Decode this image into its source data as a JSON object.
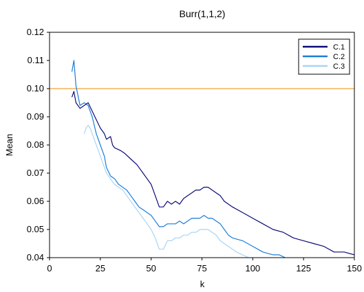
{
  "chart_data": {
    "type": "line",
    "title": "Burr(1,1,2)",
    "xlabel": "k",
    "ylabel": "Mean",
    "xlim": [
      0,
      150
    ],
    "ylim": [
      0.04,
      0.12
    ],
    "xticks": [
      0,
      25,
      50,
      75,
      100,
      125,
      150
    ],
    "yticks": [
      0.04,
      0.05,
      0.06,
      0.07,
      0.08,
      0.09,
      0.1,
      0.11,
      0.12
    ],
    "ytick_labels": [
      "0.04",
      "0.05",
      "0.06",
      "0.07",
      "0.08",
      "0.09",
      "0.10",
      "0.11",
      "0.12"
    ],
    "grid": false,
    "legend_position": "top-right",
    "reference_line": {
      "y": 0.1,
      "color": "#f5a030"
    },
    "series": [
      {
        "name": "C.1",
        "color": "#0a0a78",
        "points": [
          [
            11,
            0.097
          ],
          [
            12,
            0.099
          ],
          [
            13,
            0.095
          ],
          [
            15,
            0.093
          ],
          [
            17,
            0.094
          ],
          [
            19,
            0.095
          ],
          [
            21,
            0.092
          ],
          [
            23,
            0.089
          ],
          [
            25,
            0.086
          ],
          [
            27,
            0.084
          ],
          [
            28,
            0.082
          ],
          [
            30,
            0.083
          ],
          [
            31,
            0.08
          ],
          [
            32,
            0.079
          ],
          [
            35,
            0.078
          ],
          [
            37,
            0.077
          ],
          [
            40,
            0.075
          ],
          [
            43,
            0.073
          ],
          [
            46,
            0.07
          ],
          [
            48,
            0.068
          ],
          [
            50,
            0.066
          ],
          [
            52,
            0.062
          ],
          [
            54,
            0.058
          ],
          [
            56,
            0.058
          ],
          [
            58,
            0.06
          ],
          [
            60,
            0.059
          ],
          [
            62,
            0.06
          ],
          [
            64,
            0.059
          ],
          [
            66,
            0.061
          ],
          [
            68,
            0.062
          ],
          [
            70,
            0.063
          ],
          [
            72,
            0.064
          ],
          [
            74,
            0.064
          ],
          [
            76,
            0.065
          ],
          [
            78,
            0.065
          ],
          [
            80,
            0.064
          ],
          [
            82,
            0.063
          ],
          [
            84,
            0.062
          ],
          [
            86,
            0.06
          ],
          [
            88,
            0.059
          ],
          [
            90,
            0.058
          ],
          [
            95,
            0.056
          ],
          [
            100,
            0.054
          ],
          [
            105,
            0.052
          ],
          [
            110,
            0.05
          ],
          [
            115,
            0.049
          ],
          [
            120,
            0.047
          ],
          [
            125,
            0.046
          ],
          [
            130,
            0.045
          ],
          [
            135,
            0.044
          ],
          [
            140,
            0.042
          ],
          [
            145,
            0.042
          ],
          [
            150,
            0.041
          ]
        ]
      },
      {
        "name": "C.2",
        "color": "#1a7cd8",
        "points": [
          [
            11,
            0.106
          ],
          [
            12,
            0.11
          ],
          [
            13,
            0.101
          ],
          [
            15,
            0.094
          ],
          [
            17,
            0.095
          ],
          [
            19,
            0.094
          ],
          [
            21,
            0.09
          ],
          [
            23,
            0.084
          ],
          [
            25,
            0.08
          ],
          [
            27,
            0.076
          ],
          [
            28,
            0.072
          ],
          [
            30,
            0.069
          ],
          [
            32,
            0.068
          ],
          [
            34,
            0.066
          ],
          [
            36,
            0.065
          ],
          [
            38,
            0.064
          ],
          [
            40,
            0.062
          ],
          [
            42,
            0.06
          ],
          [
            44,
            0.058
          ],
          [
            46,
            0.057
          ],
          [
            48,
            0.056
          ],
          [
            50,
            0.055
          ],
          [
            52,
            0.053
          ],
          [
            54,
            0.051
          ],
          [
            56,
            0.051
          ],
          [
            58,
            0.052
          ],
          [
            60,
            0.052
          ],
          [
            62,
            0.052
          ],
          [
            64,
            0.053
          ],
          [
            66,
            0.052
          ],
          [
            68,
            0.053
          ],
          [
            70,
            0.054
          ],
          [
            72,
            0.054
          ],
          [
            74,
            0.054
          ],
          [
            76,
            0.055
          ],
          [
            78,
            0.054
          ],
          [
            80,
            0.054
          ],
          [
            82,
            0.053
          ],
          [
            84,
            0.052
          ],
          [
            86,
            0.05
          ],
          [
            88,
            0.048
          ],
          [
            90,
            0.047
          ],
          [
            95,
            0.046
          ],
          [
            100,
            0.044
          ],
          [
            105,
            0.042
          ],
          [
            110,
            0.041
          ],
          [
            113,
            0.041
          ],
          [
            116,
            0.04
          ]
        ]
      },
      {
        "name": "C.3",
        "color": "#a8d4f5",
        "points": [
          [
            17,
            0.084
          ],
          [
            18,
            0.086
          ],
          [
            19,
            0.087
          ],
          [
            20,
            0.086
          ],
          [
            22,
            0.082
          ],
          [
            24,
            0.078
          ],
          [
            26,
            0.074
          ],
          [
            28,
            0.07
          ],
          [
            30,
            0.068
          ],
          [
            32,
            0.066
          ],
          [
            34,
            0.065
          ],
          [
            36,
            0.064
          ],
          [
            38,
            0.062
          ],
          [
            40,
            0.06
          ],
          [
            42,
            0.058
          ],
          [
            44,
            0.056
          ],
          [
            46,
            0.054
          ],
          [
            48,
            0.052
          ],
          [
            50,
            0.05
          ],
          [
            52,
            0.047
          ],
          [
            54,
            0.043
          ],
          [
            56,
            0.043
          ],
          [
            58,
            0.046
          ],
          [
            60,
            0.046
          ],
          [
            62,
            0.047
          ],
          [
            64,
            0.047
          ],
          [
            66,
            0.048
          ],
          [
            68,
            0.048
          ],
          [
            70,
            0.049
          ],
          [
            72,
            0.049
          ],
          [
            74,
            0.05
          ],
          [
            76,
            0.05
          ],
          [
            78,
            0.05
          ],
          [
            80,
            0.049
          ],
          [
            82,
            0.048
          ],
          [
            84,
            0.046
          ],
          [
            86,
            0.045
          ],
          [
            88,
            0.044
          ],
          [
            90,
            0.043
          ],
          [
            92,
            0.042
          ],
          [
            95,
            0.041
          ],
          [
            98,
            0.04
          ]
        ]
      }
    ]
  }
}
